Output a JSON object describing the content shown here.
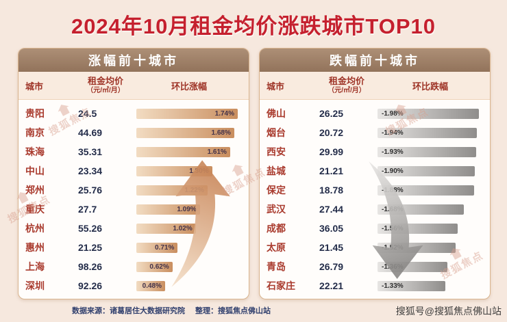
{
  "title": "2024年10月租金均价涨跌城市TOP10",
  "watermark": {
    "label": "搜狐焦点"
  },
  "footer": {
    "source": "数据来源：诸葛居住大数据研究院",
    "editor": "整理：搜狐焦点佛山站",
    "account": "搜狐号@搜狐焦点佛山站"
  },
  "colors": {
    "background": "#f6e8de",
    "title_red": "#c5202e",
    "header_taupe": "#9c7d64",
    "bar_up_gradient": [
      "#f2dcc2",
      "#c98e5f"
    ],
    "bar_down_gradient": [
      "#e7e5e3",
      "#8f8d8b"
    ],
    "city_red": "#a93a2d",
    "value_navy": "#232c49"
  },
  "chart_data": [
    {
      "type": "bar",
      "title": "涨幅前十城市",
      "direction": "up",
      "columns": {
        "city": "城市",
        "price": "租金均价",
        "price_unit": "（元/㎡/月）",
        "change": "环比涨幅"
      },
      "categories": [
        "贵阳",
        "南京",
        "珠海",
        "中山",
        "郑州",
        "重庆",
        "杭州",
        "惠州",
        "上海",
        "深圳"
      ],
      "series": [
        {
          "name": "租金均价(元/㎡/月)",
          "values": [
            24.5,
            44.69,
            35.31,
            23.34,
            25.76,
            27.7,
            55.26,
            21.25,
            98.26,
            92.26
          ]
        },
        {
          "name": "环比涨幅(%)",
          "values": [
            1.74,
            1.68,
            1.61,
            1.3,
            1.22,
            1.09,
            1.02,
            0.71,
            0.62,
            0.48
          ]
        }
      ],
      "rows": [
        {
          "city": "贵阳",
          "price": "24.5",
          "change": "1.74%",
          "value": 1.74
        },
        {
          "city": "南京",
          "price": "44.69",
          "change": "1.68%",
          "value": 1.68
        },
        {
          "city": "珠海",
          "price": "35.31",
          "change": "1.61%",
          "value": 1.61
        },
        {
          "city": "中山",
          "price": "23.34",
          "change": "1.30%",
          "value": 1.3
        },
        {
          "city": "郑州",
          "price": "25.76",
          "change": "1.22%",
          "value": 1.22
        },
        {
          "city": "重庆",
          "price": "27.7",
          "change": "1.09%",
          "value": 1.09
        },
        {
          "city": "杭州",
          "price": "55.26",
          "change": "1.02%",
          "value": 1.02
        },
        {
          "city": "惠州",
          "price": "21.25",
          "change": "0.71%",
          "value": 0.71
        },
        {
          "city": "上海",
          "price": "98.26",
          "change": "0.62%",
          "value": 0.62
        },
        {
          "city": "深圳",
          "price": "92.26",
          "change": "0.48%",
          "value": 0.48
        }
      ]
    },
    {
      "type": "bar",
      "title": "跌幅前十城市",
      "direction": "down",
      "columns": {
        "city": "城市",
        "price": "租金均价",
        "price_unit": "（元/㎡/月）",
        "change": "环比跌幅"
      },
      "categories": [
        "佛山",
        "烟台",
        "西安",
        "盐城",
        "保定",
        "武汉",
        "成都",
        "太原",
        "青岛",
        "石家庄"
      ],
      "series": [
        {
          "name": "租金均价(元/㎡/月)",
          "values": [
            26.25,
            20.72,
            29.99,
            21.21,
            18.78,
            27.44,
            36.05,
            21.45,
            26.79,
            22.21
          ]
        },
        {
          "name": "环比跌幅(%)",
          "values": [
            -1.98,
            -1.94,
            -1.93,
            -1.9,
            -1.88,
            -1.68,
            -1.56,
            -1.52,
            -1.36,
            -1.33
          ]
        }
      ],
      "rows": [
        {
          "city": "佛山",
          "price": "26.25",
          "change": "-1.98%",
          "value": -1.98
        },
        {
          "city": "烟台",
          "price": "20.72",
          "change": "-1.94%",
          "value": -1.94
        },
        {
          "city": "西安",
          "price": "29.99",
          "change": "-1.93%",
          "value": -1.93
        },
        {
          "city": "盐城",
          "price": "21.21",
          "change": "-1.90%",
          "value": -1.9
        },
        {
          "city": "保定",
          "price": "18.78",
          "change": "-1.88%",
          "value": -1.88
        },
        {
          "city": "武汉",
          "price": "27.44",
          "change": "-1.68%",
          "value": -1.68
        },
        {
          "city": "成都",
          "price": "36.05",
          "change": "-1.56%",
          "value": -1.56
        },
        {
          "city": "太原",
          "price": "21.45",
          "change": "-1.52%",
          "value": -1.52
        },
        {
          "city": "青岛",
          "price": "26.79",
          "change": "-1.36%",
          "value": -1.36
        },
        {
          "city": "石家庄",
          "price": "22.21",
          "change": "-1.33%",
          "value": -1.33
        }
      ]
    }
  ]
}
